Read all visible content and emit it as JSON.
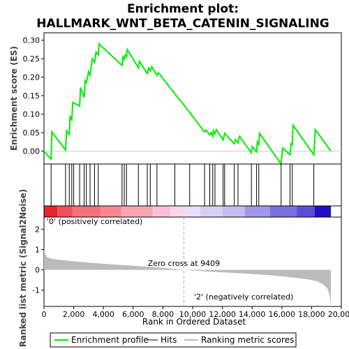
{
  "chart_data": {
    "type": "line",
    "title_line1": "Enrichment plot:",
    "title_line2": "HALLMARK_WNT_BETA_CATENIN_SIGNALING",
    "top_panel": {
      "ylabel": "Enrichment score (ES)",
      "ylim": [
        -0.035,
        0.32
      ],
      "yticks": [
        "0.00",
        "0.05",
        "0.10",
        "0.15",
        "0.20",
        "0.25",
        "0.30"
      ],
      "ytick_values": [
        0.0,
        0.05,
        0.1,
        0.15,
        0.2,
        0.25,
        0.3
      ],
      "series": [
        {
          "name": "Enrichment profile",
          "color": "#00ee00",
          "x": [
            0,
            480,
            530,
            1450,
            1520,
            1700,
            1760,
            1870,
            1940,
            2400,
            2460,
            2700,
            2770,
            2850,
            3000,
            3100,
            3250,
            3400,
            3500,
            3650,
            3700,
            5250,
            5300,
            5400,
            5450,
            5550,
            5600,
            6350,
            6420,
            6950,
            7050,
            7150,
            7250,
            7600,
            7700,
            8800,
            9409,
            10800,
            10900,
            11150,
            11250,
            11350,
            11400,
            11500,
            11600,
            12050,
            12150,
            12800,
            12900,
            13050,
            13150,
            13950,
            14000,
            14300,
            14350,
            14450,
            14500,
            15950,
            16050,
            16550,
            16620,
            16700,
            16750,
            18150,
            18250,
            19300
          ],
          "y": [
            0.0,
            -0.022,
            0.052,
            0.003,
            0.055,
            0.045,
            0.093,
            0.085,
            0.132,
            0.122,
            0.172,
            0.145,
            0.19,
            0.185,
            0.215,
            0.205,
            0.25,
            0.24,
            0.268,
            0.26,
            0.29,
            0.232,
            0.255,
            0.248,
            0.26,
            0.255,
            0.275,
            0.225,
            0.243,
            0.21,
            0.225,
            0.217,
            0.228,
            0.205,
            0.212,
            0.155,
            0.125,
            0.052,
            0.057,
            0.044,
            0.05,
            0.04,
            0.055,
            0.047,
            0.058,
            0.03,
            0.048,
            0.02,
            0.031,
            0.022,
            0.04,
            -0.005,
            0.012,
            -0.002,
            0.025,
            0.018,
            0.048,
            -0.035,
            0.008,
            -0.01,
            0.02,
            0.017,
            0.07,
            -0.01,
            0.058,
            0.0
          ]
        }
      ]
    },
    "hits": [
      480,
      1450,
      1700,
      1870,
      2000,
      2400,
      2700,
      2850,
      3100,
      3400,
      3650,
      5250,
      5400,
      5550,
      6350,
      6950,
      7150,
      7600,
      8800,
      9800,
      10800,
      11150,
      11350,
      11500,
      12050,
      12150,
      12800,
      13050,
      13950,
      14300,
      14450,
      15950,
      16550,
      16700,
      18150
    ],
    "heatmap_segments": [
      {
        "from": 0,
        "to": 900,
        "color": "#e8252a"
      },
      {
        "from": 900,
        "to": 1900,
        "color": "#f0505a"
      },
      {
        "from": 1900,
        "to": 3800,
        "color": "#f4707a"
      },
      {
        "from": 3800,
        "to": 5200,
        "color": "#f7888e"
      },
      {
        "from": 5200,
        "to": 7300,
        "color": "#f9a6b0"
      },
      {
        "from": 7300,
        "to": 8500,
        "color": "#fbc0d8"
      },
      {
        "from": 8500,
        "to": 9409,
        "color": "#fcd6ec"
      },
      {
        "from": 9409,
        "to": 10500,
        "color": "#e8e0f8"
      },
      {
        "from": 10500,
        "to": 12000,
        "color": "#d8d0f4"
      },
      {
        "from": 12000,
        "to": 13500,
        "color": "#c4bcf0"
      },
      {
        "from": 13500,
        "to": 15200,
        "color": "#9f98e8"
      },
      {
        "from": 15200,
        "to": 17000,
        "color": "#7a70e0"
      },
      {
        "from": 17000,
        "to": 18200,
        "color": "#5a50d6"
      },
      {
        "from": 18200,
        "to": 19300,
        "color": "#2010c0"
      }
    ],
    "bottom_panel": {
      "ylabel": "Ranked list metric (Signal2Noise)",
      "xlabel": "Rank in Ordered Dataset",
      "ylim": [
        -1.8,
        2.6
      ],
      "yticks": [
        "-1",
        "0",
        "1",
        "2"
      ],
      "ytick_values": [
        -1,
        0,
        1,
        2
      ],
      "metric_x": [
        0,
        200,
        500,
        1000,
        2000,
        3000,
        4000,
        5000,
        6000,
        7000,
        8000,
        9409,
        10000,
        11000,
        12000,
        13000,
        14000,
        15000,
        16000,
        17000,
        17800,
        18400,
        18800,
        19050,
        19200,
        19300
      ],
      "metric_y": [
        0.95,
        0.62,
        0.55,
        0.5,
        0.42,
        0.36,
        0.3,
        0.25,
        0.2,
        0.15,
        0.1,
        0.0,
        -0.03,
        -0.08,
        -0.12,
        -0.16,
        -0.2,
        -0.25,
        -0.31,
        -0.4,
        -0.47,
        -0.57,
        -0.72,
        -0.9,
        -1.2,
        -1.7
      ],
      "fill_color": "#bbbbbb",
      "annotation_zero_cross": "Zero cross at 9409",
      "zero_cross_x": 9409,
      "label_pos": "'0' (positively correlated)",
      "label_pos_color": "#e8252a",
      "label_neg": "'2' (negatively correlated)",
      "label_neg_color": "#2020d0"
    },
    "xlim": [
      0,
      20000
    ],
    "xticks": [
      "0",
      "2,000",
      "4,000",
      "6,000",
      "8,000",
      "10,000",
      "12,000",
      "14,000",
      "16,000",
      "18,000",
      "20,000"
    ],
    "xtick_values": [
      0,
      2000,
      4000,
      6000,
      8000,
      10000,
      12000,
      14000,
      16000,
      18000,
      20000
    ],
    "legend": [
      {
        "label": "Enrichment profile",
        "color": "#00ee00"
      },
      {
        "label": "Hits",
        "color": "#000000"
      },
      {
        "label": "Ranking metric scores",
        "color": "#bbbbbb"
      }
    ],
    "legend_placement": "bottom"
  }
}
